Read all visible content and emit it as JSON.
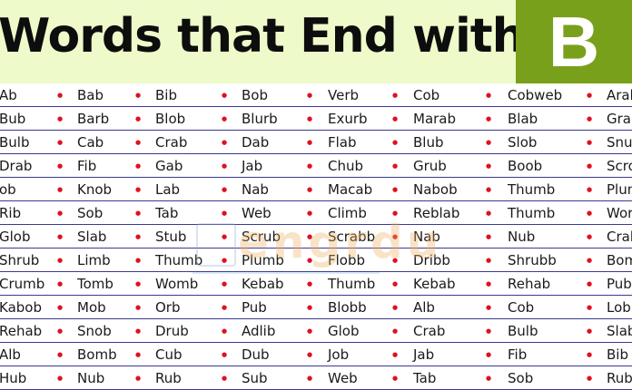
{
  "header": {
    "title": "Words that End with",
    "letter": "B",
    "background_color": "#eefaca",
    "letter_box_color": "#79a01b"
  },
  "watermark": "engrdu",
  "bullet_color": "#e01020",
  "rule_color": "#3a3a94",
  "rows": [
    [
      "Ab",
      "Bab",
      "Bib",
      "Bob",
      "Verb",
      "Cob",
      "Cobweb",
      "Arab"
    ],
    [
      "Bub",
      "Barb",
      "Blob",
      "Blurb",
      "Exurb",
      "Marab",
      "Blab",
      "Grab"
    ],
    [
      "Bulb",
      "Cab",
      "Crab",
      "Dab",
      "Flab",
      "Blub",
      "Slob",
      "Snu"
    ],
    [
      "Drab",
      "Fib",
      "Gab",
      "Jab",
      "Chub",
      "Grub",
      "Boob",
      "Scro"
    ],
    [
      "ob",
      "Knob",
      "Lab",
      "Nab",
      "Macab",
      "Nabob",
      "Thumb",
      "Plum"
    ],
    [
      "Rib",
      "Sob",
      "Tab",
      "Web",
      "Climb",
      "Reblab",
      "Thumb",
      "Wor"
    ],
    [
      "Glob",
      "Slab",
      "Stub",
      "Scrub",
      "Scrabb",
      "Nab",
      "Nub",
      "Crab"
    ],
    [
      "Shrub",
      "Limb",
      "Thumb",
      "Plumb",
      "Flobb",
      "Dribb",
      "Shrubb",
      "Bom"
    ],
    [
      "Crumb",
      "Tomb",
      "Womb",
      "Kebab",
      "Thumb",
      "Kebab",
      "Rehab",
      "Pub"
    ],
    [
      "Kabob",
      "Mob",
      "Orb",
      "Pub",
      "Blobb",
      "Alb",
      "Cob",
      "Lob"
    ],
    [
      "Rehab",
      "Snob",
      "Drub",
      "Adlib",
      "Glob",
      "Crab",
      "Bulb",
      "Slab"
    ],
    [
      "Alb",
      "Bomb",
      "Cub",
      "Dub",
      "Job",
      "Jab",
      "Fib",
      "Bib"
    ],
    [
      "Hub",
      "Nub",
      "Rub",
      "Sub",
      "Web",
      "Tab",
      "Sob",
      "Rub"
    ]
  ]
}
